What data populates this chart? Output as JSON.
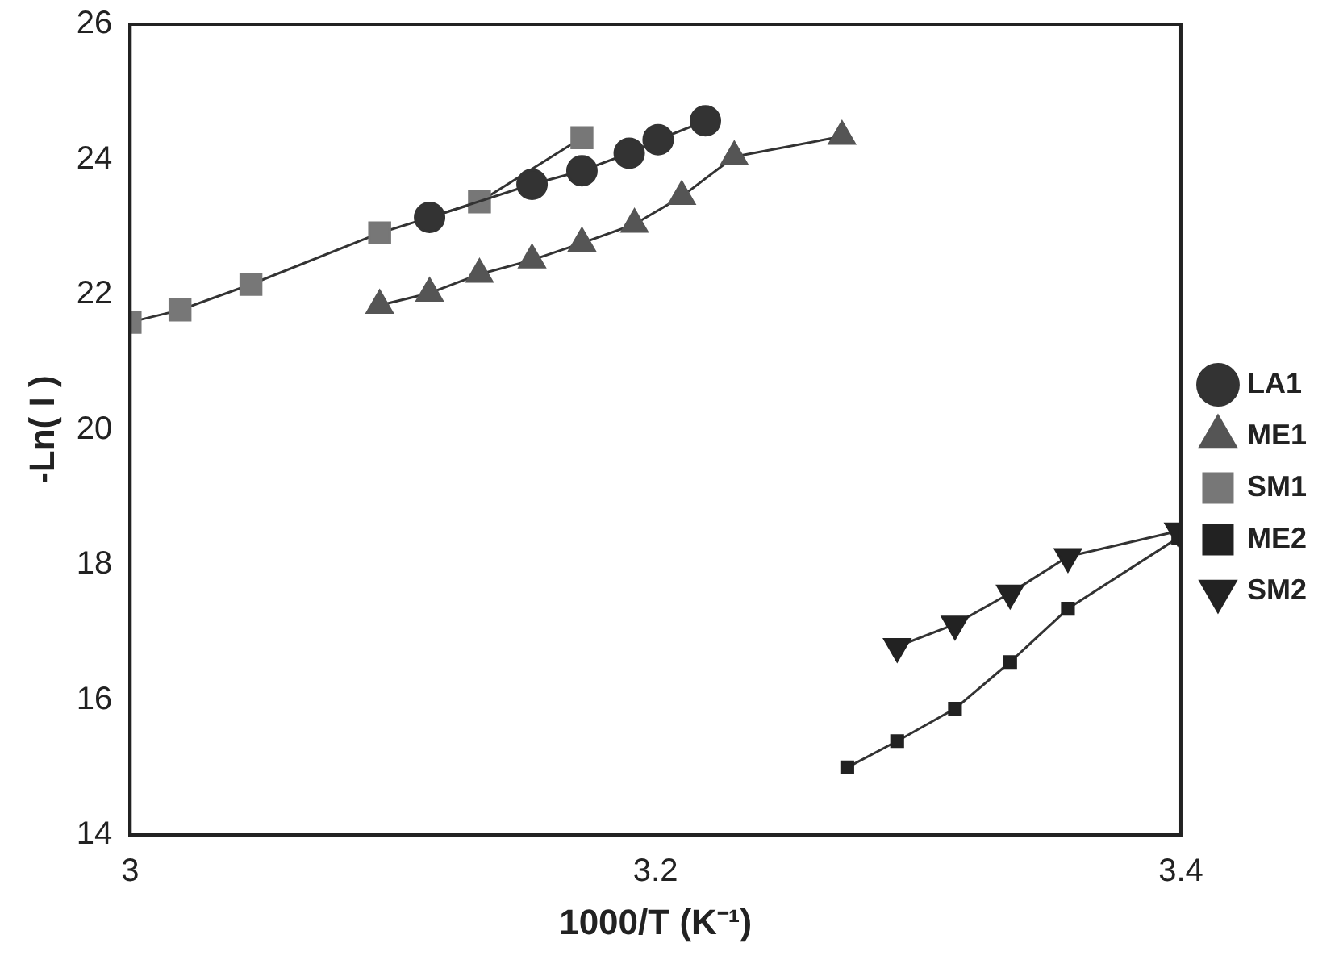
{
  "chart_data": {
    "type": "line",
    "xlabel": "1000/T (K⁻¹)",
    "ylabel": "-Ln( I )",
    "xlim": [
      3,
      3.4
    ],
    "xticks": [
      3,
      3.2,
      3.4
    ],
    "ylim": [
      14,
      26
    ],
    "yticks": [
      14,
      16,
      18,
      20,
      22,
      24,
      26
    ],
    "grid": false,
    "legend": "right",
    "line_style": "solid",
    "series": [
      {
        "name": "LA1",
        "color": "#333333",
        "marker": "circle",
        "x": [
          3.114,
          3.153,
          3.172,
          3.19,
          3.201,
          3.219
        ],
        "values": [
          23.14,
          23.63,
          23.83,
          24.09,
          24.29,
          24.57
        ]
      },
      {
        "name": "ME1",
        "color": "#555555",
        "marker": "triangle",
        "x": [
          3.095,
          3.114,
          3.133,
          3.153,
          3.172,
          3.192,
          3.21,
          3.23,
          3.271
        ],
        "values": [
          21.84,
          22.02,
          22.3,
          22.51,
          22.76,
          23.04,
          23.45,
          24.04,
          24.34
        ]
      },
      {
        "name": "SM1",
        "color": "#777777",
        "marker": "square",
        "x": [
          3,
          3.019,
          3.046,
          3.095,
          3.133,
          3.172
        ],
        "values": [
          21.59,
          21.77,
          22.15,
          22.91,
          23.37,
          24.32
        ]
      },
      {
        "name": "ME2",
        "color": "#222222",
        "marker": "square",
        "x": [
          3.273,
          3.292,
          3.314,
          3.335,
          3.357,
          3.399
        ],
        "values": [
          15.0,
          15.39,
          15.87,
          16.56,
          17.35,
          18.4
        ]
      },
      {
        "name": "SM2",
        "color": "#222222",
        "marker": "triangle_down",
        "x": [
          3.292,
          3.314,
          3.335,
          3.357,
          3.399
        ],
        "values": [
          16.79,
          17.12,
          17.58,
          18.12,
          18.5
        ]
      }
    ]
  }
}
